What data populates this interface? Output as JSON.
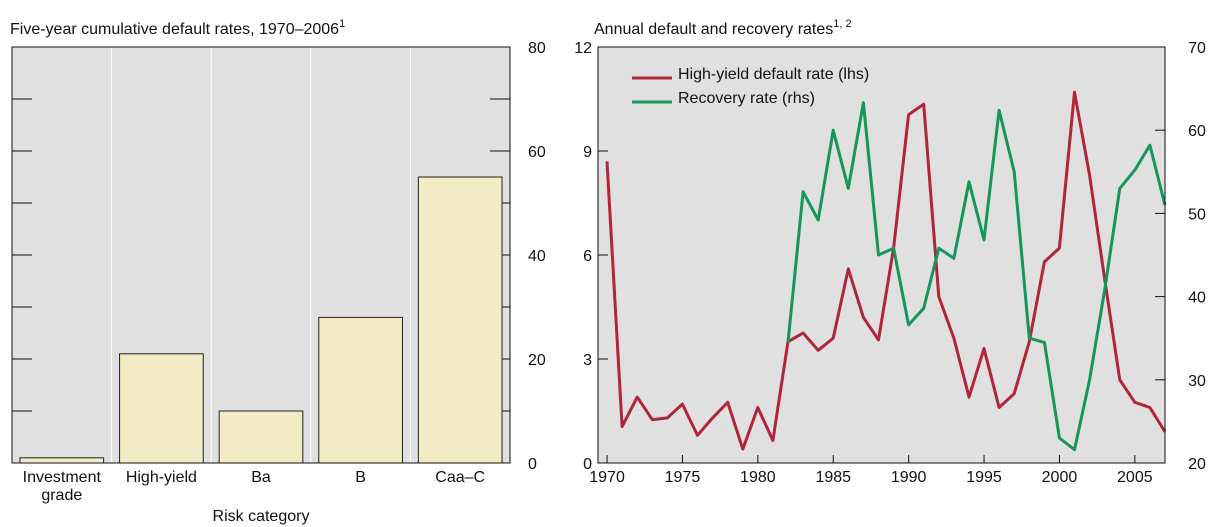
{
  "chart_data": [
    {
      "type": "bar",
      "title": "Five-year cumulative default rates, 1970–2006",
      "title_superscript": "1",
      "x_label": "Risk category",
      "categories": [
        "Investment grade",
        "High-yield",
        "Ba",
        "B",
        "Caa–C"
      ],
      "values": [
        1,
        21,
        10,
        28,
        55
      ],
      "color": "#f2ebc6",
      "ylim": [
        0,
        80
      ],
      "yticks": [
        0,
        20,
        40,
        60,
        80
      ],
      "yminor_ticks": [
        10,
        30,
        50,
        70
      ],
      "grid": true
    },
    {
      "type": "line",
      "title": "Annual default and recovery rates",
      "title_superscript": "1, 2",
      "x": [
        1970,
        1971,
        1972,
        1973,
        1974,
        1975,
        1976,
        1977,
        1978,
        1979,
        1980,
        1981,
        1982,
        1983,
        1984,
        1985,
        1986,
        1987,
        1988,
        1989,
        1990,
        1991,
        1992,
        1993,
        1994,
        1995,
        1996,
        1997,
        1998,
        1999,
        2000,
        2001,
        2002,
        2003,
        2004,
        2005,
        2006,
        2007
      ],
      "xlim": [
        1969.4,
        2007
      ],
      "xticks": [
        1970,
        1975,
        1980,
        1985,
        1990,
        1995,
        2000,
        2005
      ],
      "ylim": [
        0,
        12
      ],
      "yticks": [
        0,
        3,
        6,
        9,
        12
      ],
      "y2lim": [
        20,
        70
      ],
      "y2ticks": [
        20,
        30,
        40,
        50,
        60,
        70
      ],
      "legend": "upper left",
      "series": [
        {
          "name": "High-yield default rate (lhs)",
          "color": "#b0253a",
          "values": [
            8.7,
            1.05,
            1.9,
            1.25,
            1.3,
            1.7,
            0.8,
            1.3,
            1.75,
            0.4,
            1.6,
            0.65,
            3.5,
            3.75,
            3.25,
            3.6,
            5.6,
            4.2,
            3.55,
            6.2,
            10.05,
            10.35,
            4.8,
            3.6,
            1.9,
            3.3,
            1.6,
            2.0,
            3.5,
            5.8,
            6.2,
            10.7,
            8.3,
            5.3,
            2.4,
            1.75,
            1.6,
            0.9
          ]
        },
        {
          "name": "Recovery rate (rhs)",
          "color": "#15965a",
          "axis": "y2",
          "values": [
            null,
            null,
            null,
            null,
            null,
            null,
            null,
            null,
            null,
            null,
            null,
            null,
            34.5,
            52.6,
            49.2,
            60,
            53,
            63.3,
            45,
            45.8,
            36.6,
            38.6,
            45.8,
            44.6,
            53.8,
            46.8,
            62.4,
            55,
            35,
            34.5,
            23,
            21.6,
            30,
            40.8,
            53,
            55.2,
            58.2,
            51
          ]
        }
      ]
    }
  ]
}
